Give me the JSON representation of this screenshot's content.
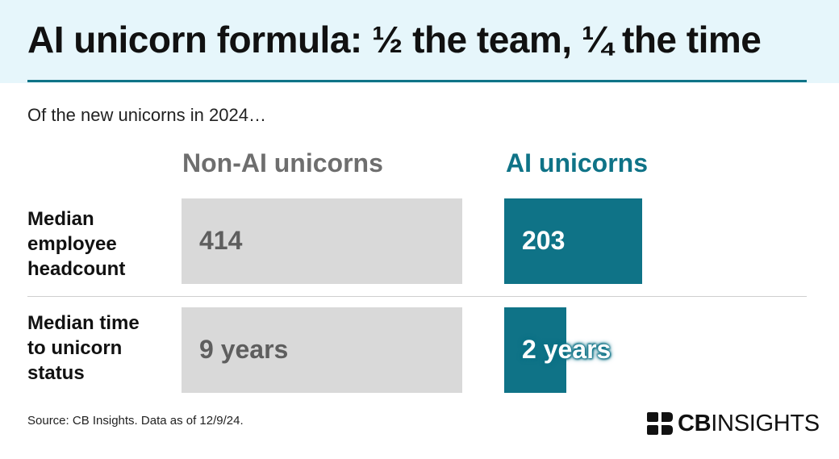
{
  "title": "AI unicorn formula: ½ the team, ¼ the time",
  "subtitle": "Of the new unicorns in 2024…",
  "source": "Source: CB Insights. Data as of 12/9/24.",
  "logo": {
    "bold": "CB",
    "regular": "INSIGHTS",
    "icon": "cb-insights-logo-icon"
  },
  "colors": {
    "accent": "#0f7387",
    "nonai_bar": "#d9d9d9",
    "nonai_text": "#6e6e6e",
    "header_bg": "#e6f6fb"
  },
  "chart_data": {
    "type": "bar",
    "title": "AI unicorn formula: ½ the team, ¼ the time",
    "subtitle": "Of the new unicorns in 2024…",
    "series": [
      {
        "name": "Non-AI unicorns",
        "color": "#d9d9d9"
      },
      {
        "name": "AI unicorns",
        "color": "#0f7387"
      }
    ],
    "rows": [
      {
        "label": [
          "Median",
          "employee",
          "headcount"
        ],
        "values": [
          414,
          203
        ],
        "display": [
          "414",
          "203"
        ]
      },
      {
        "label": [
          "Median time",
          "to unicorn",
          "status"
        ],
        "values": [
          9,
          2
        ],
        "display": [
          "9 years",
          "2 years"
        ]
      }
    ],
    "grid": false,
    "legend": "column headers"
  }
}
